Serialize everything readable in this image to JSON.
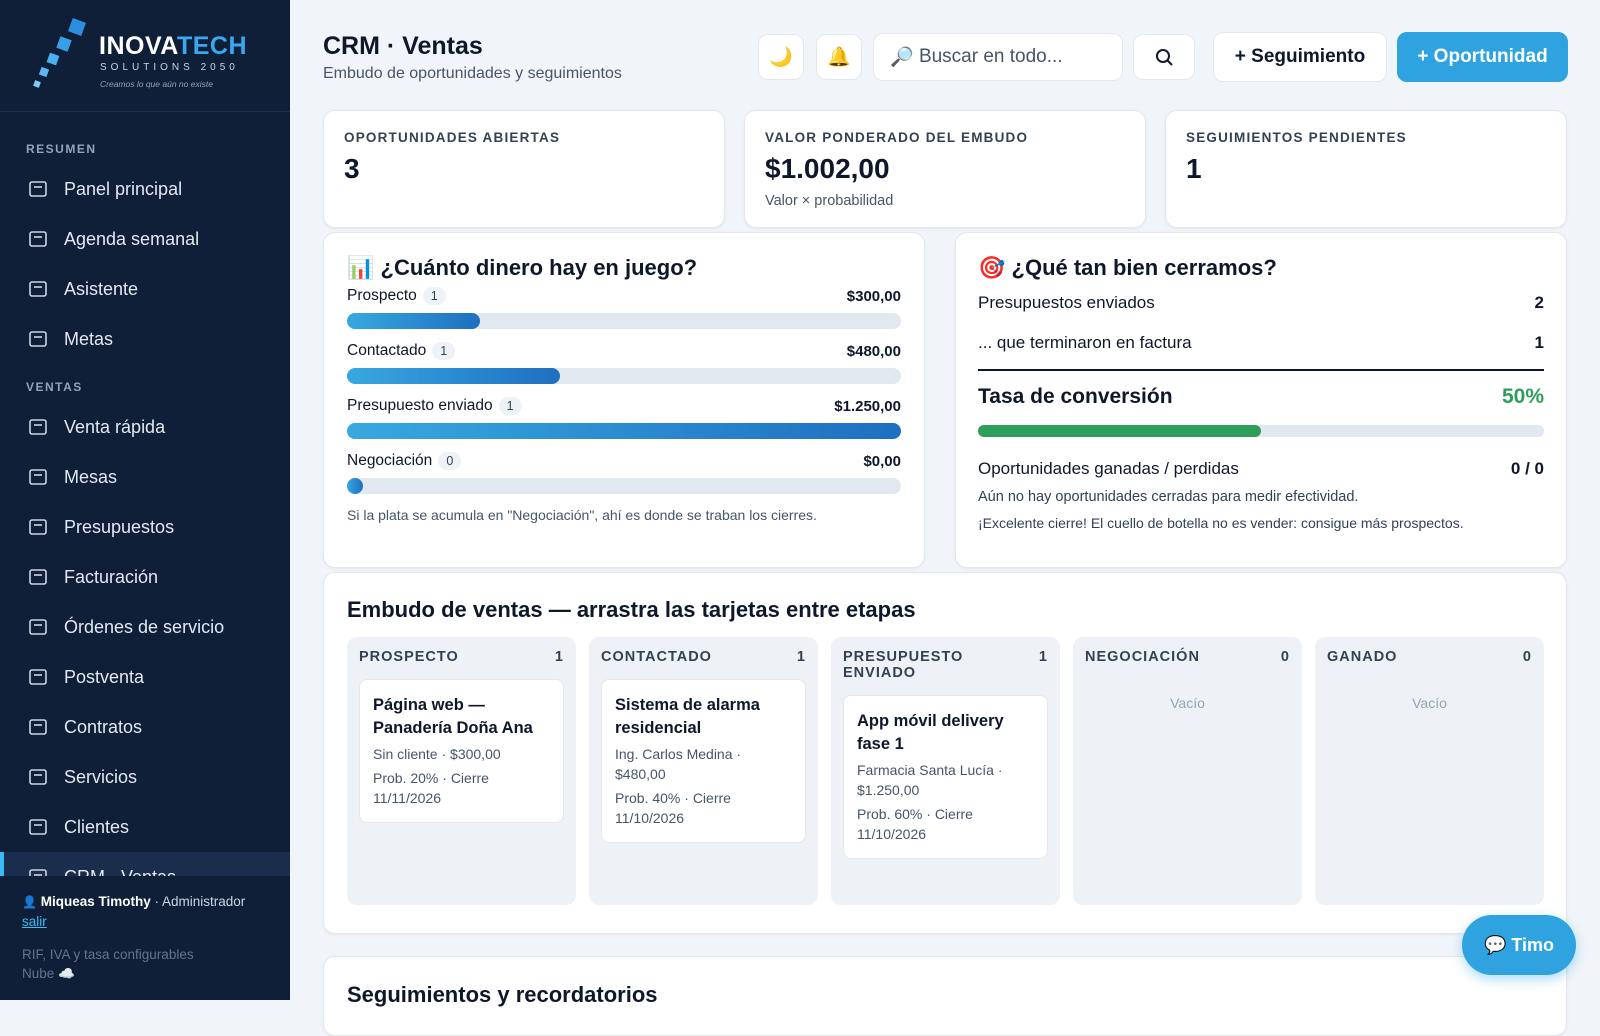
{
  "sidebar": {
    "brand": {
      "name1": "INOVA",
      "name2": "TECH",
      "sub": "SOLUTIONS 2050",
      "tagline": "Creamos lo que aún no existe"
    },
    "sections": [
      {
        "title": "RESUMEN",
        "items": [
          "Panel principal",
          "Agenda semanal",
          "Asistente",
          "Metas"
        ]
      },
      {
        "title": "VENTAS",
        "items": [
          "Venta rápida",
          "Mesas",
          "Presupuestos",
          "Facturación",
          "Órdenes de servicio",
          "Postventa",
          "Contratos",
          "Servicios",
          "Clientes",
          "CRM · Ventas"
        ]
      }
    ],
    "active": "CRM · Ventas",
    "user": {
      "name": "Miqueas Timothy",
      "role": "· Administrador",
      "logout": "salir",
      "note1": "RIF, IVA y tasa configurables",
      "note2": "Nube"
    }
  },
  "header": {
    "title": "CRM · Ventas",
    "subtitle": "Embudo de oportunidades y seguimientos",
    "search_placeholder": "Buscar en todo...",
    "btn_follow": "+ Seguimiento",
    "btn_opp": "+ Oportunidad"
  },
  "kpis": [
    {
      "label": "OPORTUNIDADES ABIERTAS",
      "value": 3
    },
    {
      "label": "VALOR PONDERADO DEL EMBUDO",
      "value": "$1.002,00",
      "note": "Valor × probabilidad"
    },
    {
      "label": "SEGUIMIENTOS PENDIENTES",
      "value": 1
    }
  ],
  "money": {
    "title": "¿Cuánto dinero hay en juego?",
    "stages": [
      {
        "name": "Prospecto",
        "count": 1,
        "amount": 300,
        "amount_label": "$300,00"
      },
      {
        "name": "Contactado",
        "count": 1,
        "amount": 480,
        "amount_label": "$480,00"
      },
      {
        "name": "Presupuesto enviado",
        "count": 1,
        "amount": 1250,
        "amount_label": "$1.250,00"
      },
      {
        "name": "Negociación",
        "count": 0,
        "amount": 0,
        "amount_label": "$0,00"
      }
    ],
    "note": "Si la plata se acumula en \"Negociación\", ahí es donde se traban los cierres."
  },
  "conversion": {
    "title": "¿Qué tan bien cerramos?",
    "rows": [
      {
        "label": "Presupuestos enviados",
        "value": 2
      },
      {
        "label": "... que terminaron en factura",
        "value": 1
      }
    ],
    "rate_title": "Tasa de conversión",
    "rate": 50,
    "rate_label": "50%",
    "won_lost_label": "Oportunidades ganadas / perdidas",
    "won_lost": "0 / 0",
    "note1": "Aún no hay oportunidades cerradas para medir efectividad.",
    "note2": "¡Excelente cierre! El cuello de botella no es vender: consigue más prospectos."
  },
  "pipeline": {
    "title": "Embudo de ventas — arrastra las tarjetas entre etapas",
    "columns": [
      {
        "name": "PROSPECTO",
        "count": 1,
        "cards": [
          {
            "title": "Página web — Panadería Doña Ana",
            "line1": "Sin cliente · $300,00",
            "line2": "Prob. 20% · Cierre 11/11/2026"
          }
        ]
      },
      {
        "name": "CONTACTADO",
        "count": 1,
        "cards": [
          {
            "title": "Sistema de alarma residencial",
            "line1": "Ing. Carlos Medina · $480,00",
            "line2": "Prob. 40% · Cierre 11/10/2026"
          }
        ]
      },
      {
        "name": "PRESUPUESTO ENVIADO",
        "count": 1,
        "cards": [
          {
            "title": "App móvil delivery fase 1",
            "line1": "Farmacia Santa Lucía · $1.250,00",
            "line2": "Prob. 60% · Cierre 11/10/2026"
          }
        ]
      },
      {
        "name": "NEGOCIACIÓN",
        "count": 0,
        "empty": "Vacío",
        "cards": []
      },
      {
        "name": "GANADO",
        "count": 0,
        "empty": "Vacío",
        "cards": []
      }
    ]
  },
  "followups": {
    "title": "Seguimientos y recordatorios"
  },
  "chat": {
    "label": "Timo"
  }
}
